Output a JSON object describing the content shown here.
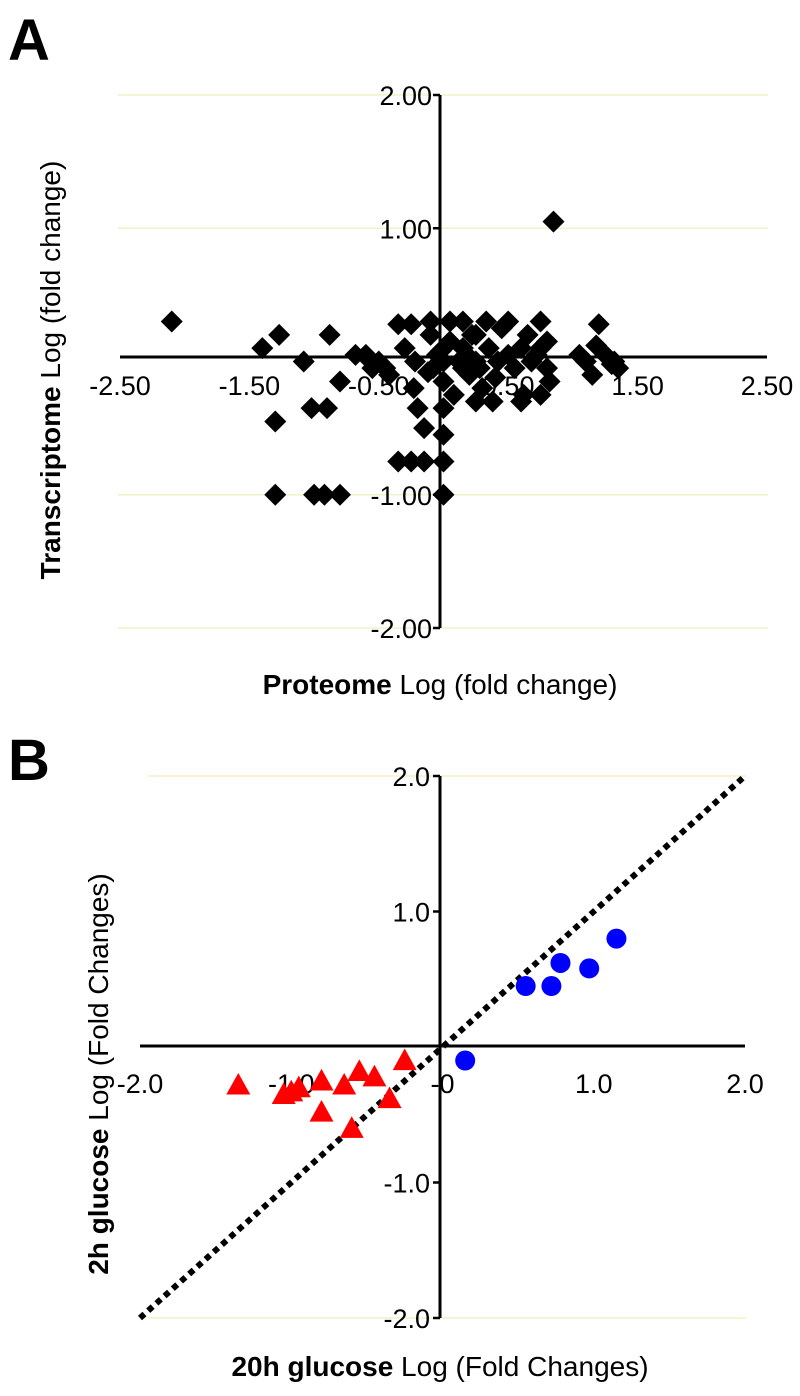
{
  "chart_data": [
    {
      "panel": "A",
      "type": "scatter",
      "xlabel_bold": "Proteome",
      "xlabel_rest": " Log (fold change)",
      "ylabel_bold": "Transcriptome",
      "ylabel_rest": " Log (fold change)",
      "xlim": [
        -2.5,
        2.5
      ],
      "ylim": [
        -2.0,
        2.0
      ],
      "x_ticks": [
        "-2.50",
        "-1.50",
        "-0.50",
        "0.50",
        "1.50",
        "2.50"
      ],
      "y_ticks": [
        "2.00",
        "1.00",
        "-1.00",
        "-2.00"
      ],
      "grid": "horizontal",
      "marker": "diamond",
      "color": "#000000",
      "series": [
        {
          "points": [
            [
              -2.1,
              0.3
            ],
            [
              -1.4,
              0.1
            ],
            [
              -1.27,
              0.2
            ],
            [
              -1.3,
              -0.45
            ],
            [
              -1.3,
              -1.0
            ],
            [
              -1.0,
              -1.0
            ],
            [
              -0.92,
              -1.0
            ],
            [
              -0.8,
              -1.0
            ],
            [
              -1.08,
              0.0
            ],
            [
              -1.02,
              -0.35
            ],
            [
              -0.9,
              -0.35
            ],
            [
              -0.88,
              0.2
            ],
            [
              -0.8,
              -0.15
            ],
            [
              -0.68,
              0.05
            ],
            [
              -0.58,
              0.02
            ],
            [
              -0.5,
              0.0
            ],
            [
              -0.45,
              -0.05
            ],
            [
              -0.42,
              -0.1
            ],
            [
              -0.35,
              0.28
            ],
            [
              -0.25,
              0.28
            ],
            [
              -0.23,
              -0.2
            ],
            [
              -0.22,
              0.0
            ],
            [
              -0.2,
              -0.35
            ],
            [
              -0.15,
              -0.5
            ],
            [
              -0.15,
              -0.75
            ],
            [
              -0.25,
              -0.75
            ],
            [
              -0.35,
              -0.75
            ],
            [
              -0.1,
              0.3
            ],
            [
              -0.1,
              0.2
            ],
            [
              -0.08,
              -0.05
            ],
            [
              -0.05,
              0.05
            ],
            [
              0.0,
              0.0
            ],
            [
              0.0,
              -0.15
            ],
            [
              0.0,
              -0.35
            ],
            [
              0.0,
              -0.55
            ],
            [
              0.0,
              -0.75
            ],
            [
              0.0,
              -1.0
            ],
            [
              0.05,
              0.3
            ],
            [
              0.05,
              0.15
            ],
            [
              0.08,
              -0.25
            ],
            [
              0.12,
              0.0
            ],
            [
              0.15,
              0.3
            ],
            [
              0.15,
              0.1
            ],
            [
              0.18,
              0.05
            ],
            [
              0.2,
              -0.1
            ],
            [
              0.22,
              0.2
            ],
            [
              0.25,
              0.0
            ],
            [
              0.28,
              -0.05
            ],
            [
              0.3,
              -0.2
            ],
            [
              0.33,
              0.3
            ],
            [
              0.35,
              0.1
            ],
            [
              0.38,
              -0.3
            ],
            [
              0.42,
              0.0
            ],
            [
              0.45,
              0.25
            ],
            [
              0.5,
              0.3
            ],
            [
              0.5,
              0.05
            ],
            [
              0.55,
              -0.05
            ],
            [
              0.6,
              0.1
            ],
            [
              0.62,
              -0.25
            ],
            [
              0.65,
              0.2
            ],
            [
              0.68,
              0.0
            ],
            [
              0.72,
              0.05
            ],
            [
              0.75,
              0.3
            ],
            [
              0.75,
              0.1
            ],
            [
              0.75,
              -0.25
            ],
            [
              0.8,
              -0.05
            ],
            [
              0.8,
              0.15
            ],
            [
              0.85,
              1.05
            ],
            [
              0.82,
              -0.15
            ],
            [
              1.05,
              0.05
            ],
            [
              1.1,
              0.0
            ],
            [
              1.15,
              -0.1
            ],
            [
              1.18,
              0.12
            ],
            [
              1.2,
              0.28
            ],
            [
              1.25,
              0.05
            ],
            [
              1.3,
              -0.02
            ],
            [
              1.32,
              0.0
            ],
            [
              1.35,
              -0.05
            ],
            [
              0.6,
              -0.3
            ],
            [
              0.25,
              -0.3
            ],
            [
              -0.6,
              0.05
            ],
            [
              -0.55,
              -0.05
            ],
            [
              -0.3,
              0.1
            ],
            [
              -0.02,
              0.08
            ],
            [
              0.4,
              -0.12
            ],
            [
              0.25,
              0.2
            ],
            [
              0.15,
              -0.05
            ],
            [
              -0.12,
              -0.08
            ]
          ]
        }
      ]
    },
    {
      "panel": "B",
      "type": "scatter",
      "xlabel_bold": "20h glucose",
      "xlabel_rest": " Log (Fold Changes)",
      "ylabel_bold": "2h glucose",
      "ylabel_rest": " Log (Fold Changes)",
      "xlim": [
        -2.0,
        2.0
      ],
      "ylim": [
        -2.0,
        2.0
      ],
      "x_ticks": [
        "-2.0",
        "-1.0",
        "-0",
        "1.0",
        "2.0"
      ],
      "y_ticks": [
        "2.0",
        "1.0",
        "-1.0",
        "-2.0"
      ],
      "grid": "horizontal",
      "reference_line": "y = x (dotted)",
      "series": [
        {
          "marker": "triangle",
          "color": "#ff0000",
          "points": [
            [
              -1.35,
              -0.28
            ],
            [
              -1.0,
              -0.33
            ],
            [
              -0.95,
              -0.3
            ],
            [
              -0.8,
              -0.25
            ],
            [
              -0.65,
              -0.28
            ],
            [
              -0.55,
              -0.18
            ],
            [
              -0.45,
              -0.22
            ],
            [
              -0.35,
              -0.38
            ],
            [
              -0.8,
              -0.48
            ],
            [
              -0.6,
              -0.6
            ],
            [
              -0.25,
              -0.1
            ],
            [
              -1.05,
              -0.35
            ]
          ]
        },
        {
          "marker": "circle",
          "color": "#0000ff",
          "points": [
            [
              0.15,
              -0.1
            ],
            [
              0.55,
              0.45
            ],
            [
              0.72,
              0.45
            ],
            [
              0.78,
              0.62
            ],
            [
              0.97,
              0.58
            ],
            [
              1.15,
              0.8
            ]
          ]
        }
      ]
    }
  ],
  "panels": {
    "a_letter": "A",
    "b_letter": "B"
  }
}
